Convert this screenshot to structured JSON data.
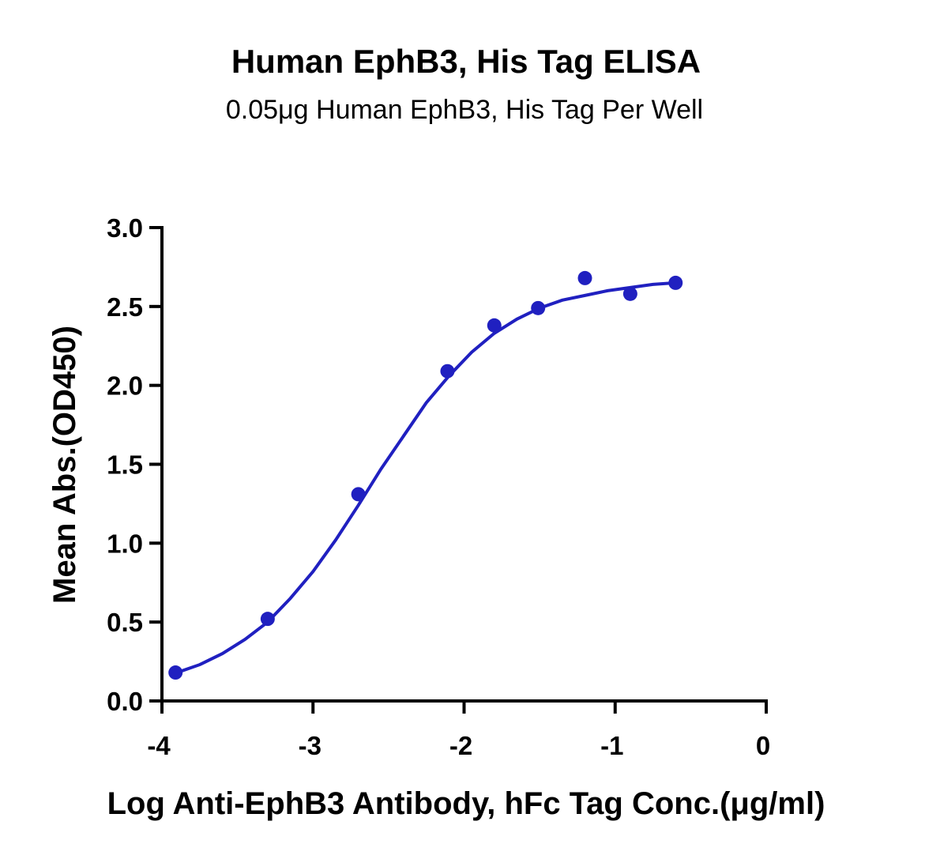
{
  "chart_data": {
    "type": "scatter",
    "title": "Human EphB3, His Tag ELISA",
    "subtitle": "0.05μg Human EphB3, His Tag Per Well",
    "x_label": "Log Anti-EphB3 Antibody, hFc Tag Conc.(μg/ml)",
    "y_label": "Mean Abs.(OD450)",
    "xlim": [
      -4,
      0
    ],
    "xticks": [
      -4,
      -3,
      -2,
      -1,
      0
    ],
    "ylim": [
      0,
      3
    ],
    "yticks": [
      {
        "value": 0,
        "label": "0.0"
      },
      {
        "value": 0.5,
        "label": "0.5"
      },
      {
        "value": 1,
        "label": "1.0"
      },
      {
        "value": 1.5,
        "label": "1.5"
      },
      {
        "value": 2,
        "label": "2.0"
      },
      {
        "value": 2.5,
        "label": "2.5"
      },
      {
        "value": 3,
        "label": "3.0"
      }
    ],
    "series": [
      {
        "type": "scatter",
        "color": "#2020c0",
        "x": [
          -3.91,
          -3.3,
          -2.7,
          -2.11,
          -1.8,
          -1.51,
          -1.2,
          -0.9,
          -0.6
        ],
        "values": [
          0.18,
          0.52,
          1.31,
          2.09,
          2.38,
          2.49,
          2.68,
          2.58,
          2.65
        ]
      },
      {
        "type": "line",
        "color": "#2020c0",
        "x": [
          -3.9,
          -3.75,
          -3.6,
          -3.45,
          -3.3,
          -3.15,
          -3.0,
          -2.85,
          -2.7,
          -2.55,
          -2.4,
          -2.25,
          -2.1,
          -1.95,
          -1.8,
          -1.65,
          -1.5,
          -1.35,
          -1.2,
          -1.05,
          -0.9,
          -0.75,
          -0.6
        ],
        "values": [
          0.18,
          0.23,
          0.3,
          0.39,
          0.5,
          0.65,
          0.82,
          1.02,
          1.24,
          1.47,
          1.68,
          1.89,
          2.06,
          2.21,
          2.33,
          2.42,
          2.49,
          2.54,
          2.57,
          2.6,
          2.62,
          2.64,
          2.65
        ]
      }
    ]
  }
}
